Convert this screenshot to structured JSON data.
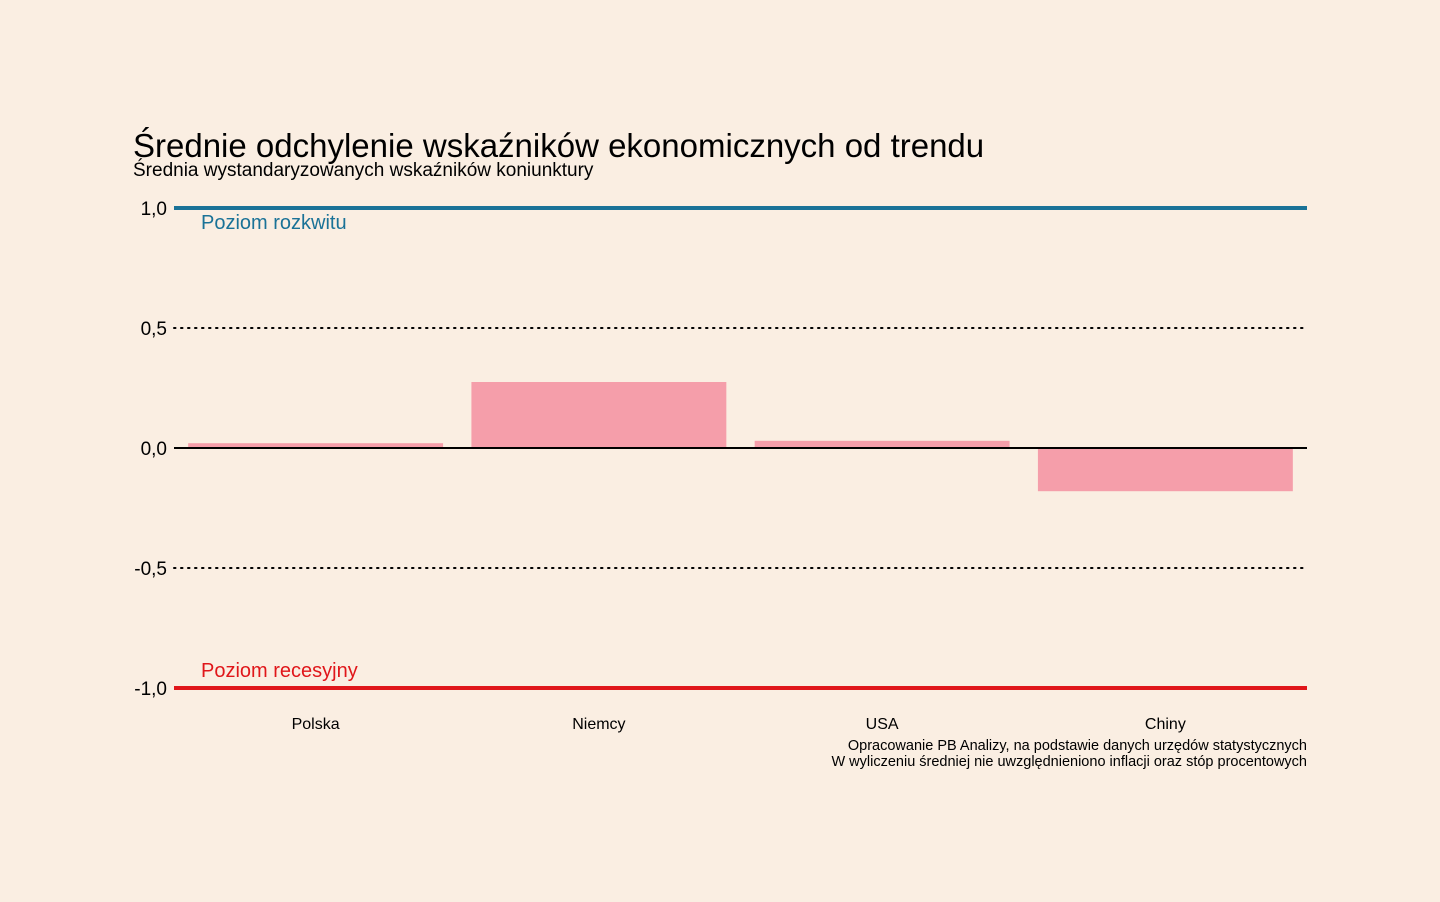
{
  "chart_data": {
    "type": "bar",
    "title": "Średnie odchylenie wskaźników ekonomicznych od trendu",
    "subtitle": "Średnia wystandaryzowanych wskaźników koniunktury",
    "categories": [
      "Polska",
      "Niemcy",
      "USA",
      "Chiny"
    ],
    "values": [
      0.02,
      0.275,
      0.03,
      -0.18
    ],
    "ylim": [
      -1.0,
      1.0
    ],
    "yticks": [
      1.0,
      0.5,
      0.0,
      -0.5,
      -1.0
    ],
    "ytick_labels": [
      "1,0",
      "0,5",
      "0,0",
      "-0,5",
      "-1,0"
    ],
    "xlabel": "",
    "ylabel": "",
    "bar_color": "#F59EAA",
    "gridlines": "dotted at ±0,5",
    "reference_lines": [
      {
        "value": 1.0,
        "label": "Poziom rozkwitu",
        "color": "#1A7297"
      },
      {
        "value": -1.0,
        "label": "Poziom recesyjny",
        "color": "#E0161A"
      }
    ],
    "caption_lines": [
      "Opracowanie PB Analizy, na podstawie danych urzędów statystycznych",
      "W wyliczeniu średniej nie uwzględnieniono inflacji oraz stóp procentowych"
    ]
  }
}
